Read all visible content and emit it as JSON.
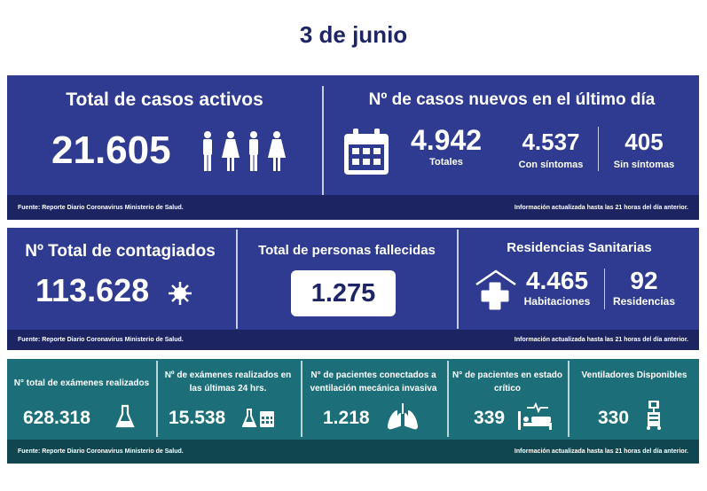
{
  "date": "3 de junio",
  "row1": {
    "active": {
      "title": "Total de casos activos",
      "value": "21.605"
    },
    "new": {
      "title": "Nº de casos nuevos en el último día",
      "total": "4.942",
      "total_label": "Totales",
      "sym": "4.537",
      "sym_label": "Con síntomas",
      "asym": "405",
      "asym_label": "Sin síntomas"
    },
    "source": "Fuente: Reporte Diario Coronavirus Ministerio de Salud.",
    "updated": "Información actualizada hasta las 21 horas  del día anterior."
  },
  "row2": {
    "contagiados": {
      "title": "Nº Total de contagiados",
      "value": "113.628"
    },
    "fallecidos": {
      "title": "Total de personas fallecidas",
      "value": "1.275"
    },
    "residencias": {
      "title": "Residencias Sanitarias",
      "rooms": "4.465",
      "rooms_label": "Habitaciones",
      "count": "92",
      "count_label": "Residencias"
    },
    "source": "Fuente: Reporte Diario Coronavirus Ministerio de Salud.",
    "updated": "Información actualizada hasta las 21 horas  del día anterior."
  },
  "row3": {
    "items": [
      {
        "title": "N° total de exámenes realizados",
        "value": "628.318"
      },
      {
        "title": "Nº de exámenes realizados en las últimas 24 hrs.",
        "value": "15.538"
      },
      {
        "title": "N° de pacientes conectados a ventilación mecánica invasiva",
        "value": "1.218"
      },
      {
        "title": "N° de pacientes  en estado crítico",
        "value": "339"
      },
      {
        "title": "Ventiladores Disponibles",
        "value": "330"
      }
    ],
    "source": "Fuente: Reporte Diario Coronavirus Ministerio de Salud.",
    "updated": "Información actualizada hasta las 21 horas  del día anterior."
  },
  "colors": {
    "blue": "#2e3b90",
    "blue_footer": "#1c2462",
    "teal": "#1c6f79",
    "teal_footer": "#10464f",
    "title": "#1d2566"
  }
}
